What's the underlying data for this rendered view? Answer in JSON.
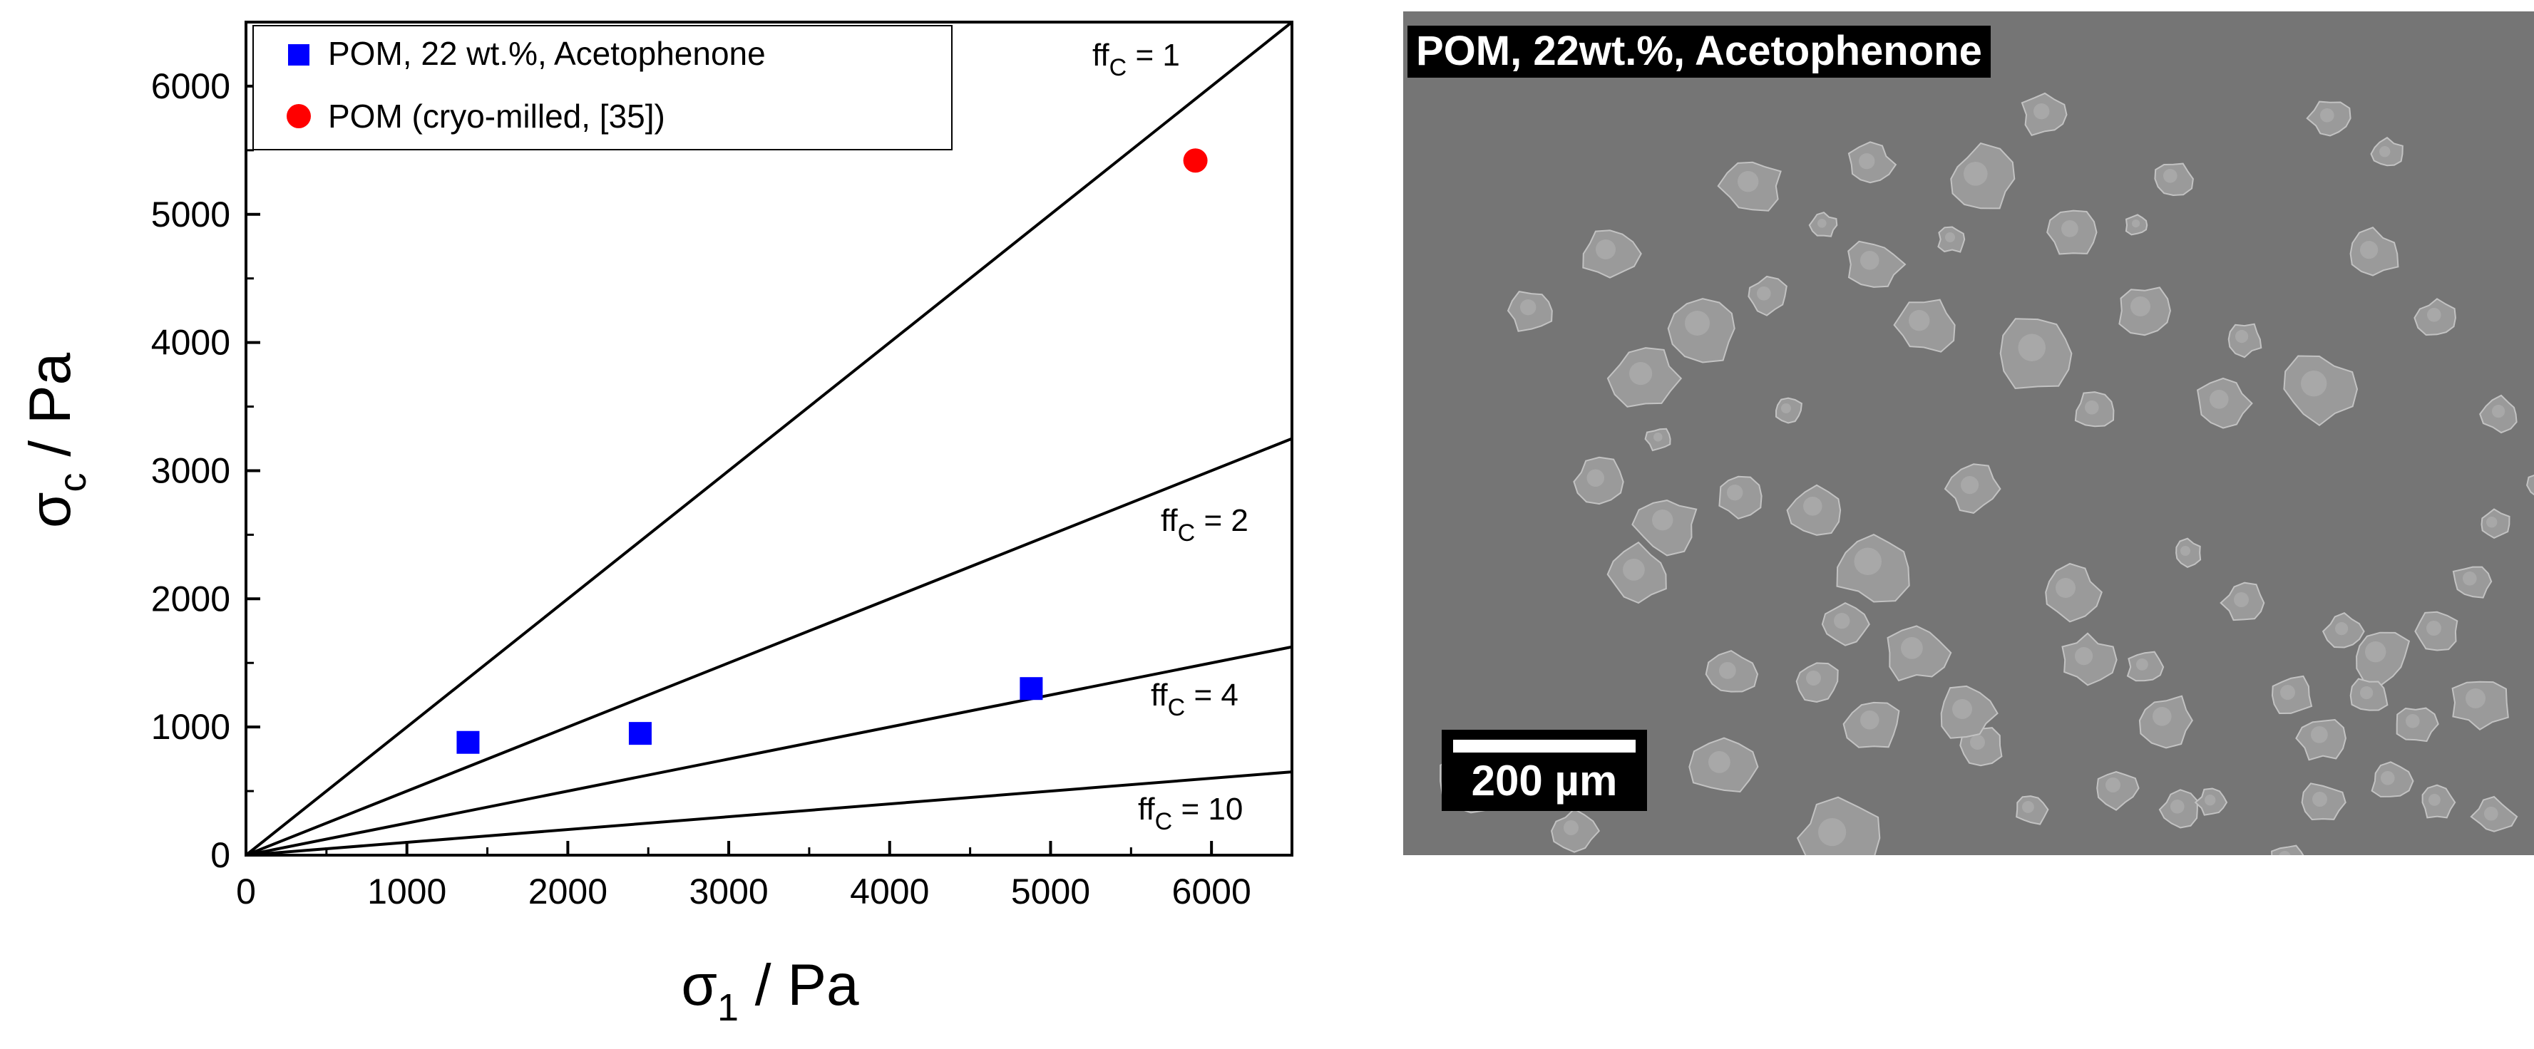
{
  "chart_data": {
    "type": "scatter",
    "xlabel_symbol": "σ",
    "xlabel_sub": "1",
    "xlabel_unit": " / Pa",
    "ylabel_symbol": "σ",
    "ylabel_sub": "c",
    "ylabel_unit": " / Pa",
    "xlim": [
      0,
      6500
    ],
    "ylim": [
      0,
      6500
    ],
    "x_ticks": [
      0,
      1000,
      2000,
      3000,
      4000,
      5000,
      6000
    ],
    "y_ticks": [
      0,
      1000,
      2000,
      3000,
      4000,
      5000,
      6000
    ],
    "x_tick_labels": [
      "0",
      "1000",
      "2000",
      "3000",
      "4000",
      "5000",
      "6000"
    ],
    "y_tick_labels": [
      "0",
      "1000",
      "2000",
      "3000",
      "4000",
      "5000",
      "6000"
    ],
    "legend_position": "top-left",
    "grid": false,
    "series": [
      {
        "name": "POM, 22 wt.%, Acetophenone",
        "marker": "square",
        "color": "#0000ff",
        "points": [
          {
            "x": 1380,
            "y": 880
          },
          {
            "x": 2450,
            "y": 950
          },
          {
            "x": 4880,
            "y": 1300
          }
        ]
      },
      {
        "name": "POM (cryo-milled, [35])",
        "marker": "circle",
        "color": "#ff0000",
        "points": [
          {
            "x": 5900,
            "y": 5420
          }
        ]
      }
    ],
    "reference_lines": [
      {
        "ffc": 1,
        "label_main": "ff",
        "label_sub": "C",
        "label_rest": " = 1"
      },
      {
        "ffc": 2,
        "label_main": "ff",
        "label_sub": "C",
        "label_rest": " = 2"
      },
      {
        "ffc": 4,
        "label_main": "ff",
        "label_sub": "C",
        "label_rest": " = 4"
      },
      {
        "ffc": 10,
        "label_main": "ff",
        "label_sub": "C",
        "label_rest": " = 10"
      }
    ]
  },
  "sem_image": {
    "title": "POM, 22wt.%, Acetophenone",
    "scale_bar_label": "200 µm",
    "background_color": "#757575",
    "particle_color": "#9a9a9a"
  }
}
